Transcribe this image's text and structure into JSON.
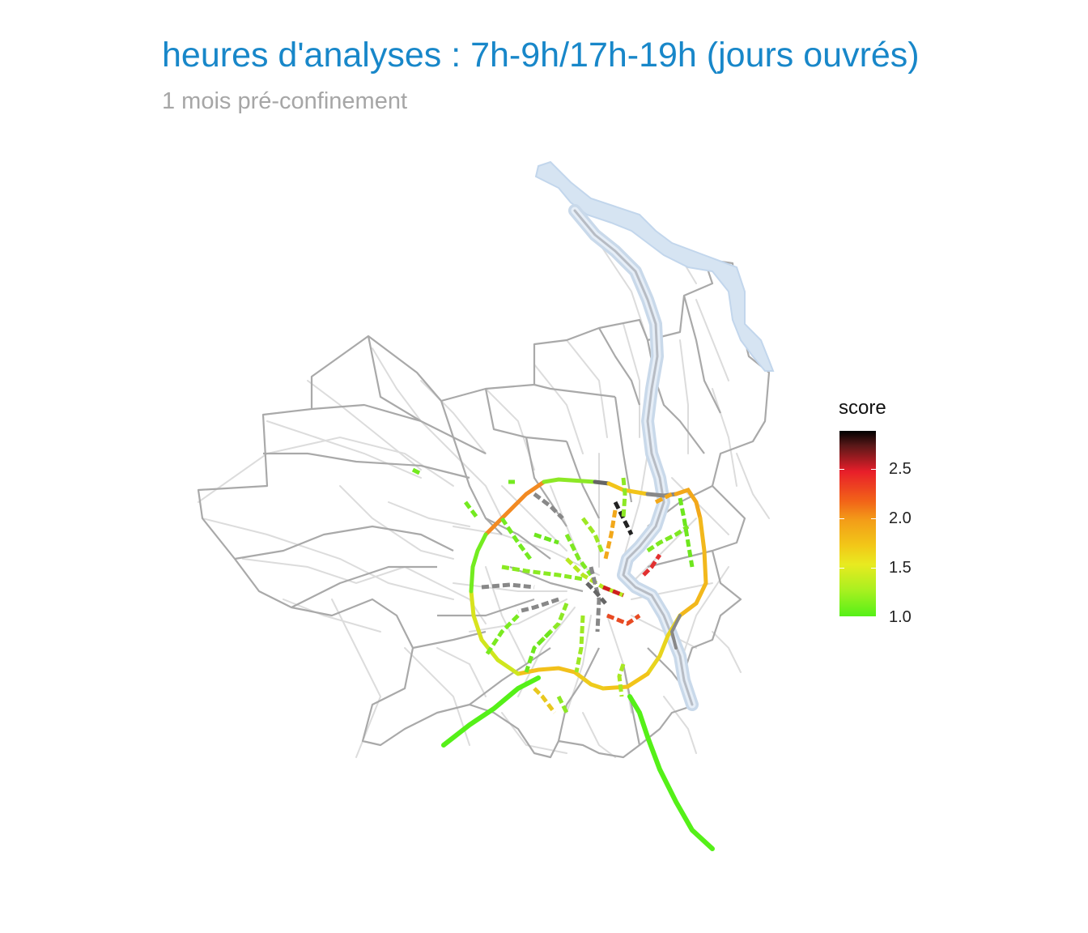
{
  "title": "heures d'analyses : 7h-9h/17h-19h (jours ouvrés)",
  "subtitle": "1 mois pré-confinement",
  "legend": {
    "title": "score",
    "ticks": [
      "2.5",
      "2.0",
      "1.5",
      "1.0"
    ],
    "range": [
      1.0,
      2.9
    ],
    "colors": [
      "#55f018",
      "#e8ea20",
      "#f39c18",
      "#e81e2a",
      "#000000"
    ]
  },
  "colors": {
    "title": "#1887c9",
    "subtitle": "#a6a6a6",
    "river": "#d6e4f2",
    "commune_border": "#a9a9a9",
    "road": "#dddddd"
  }
}
